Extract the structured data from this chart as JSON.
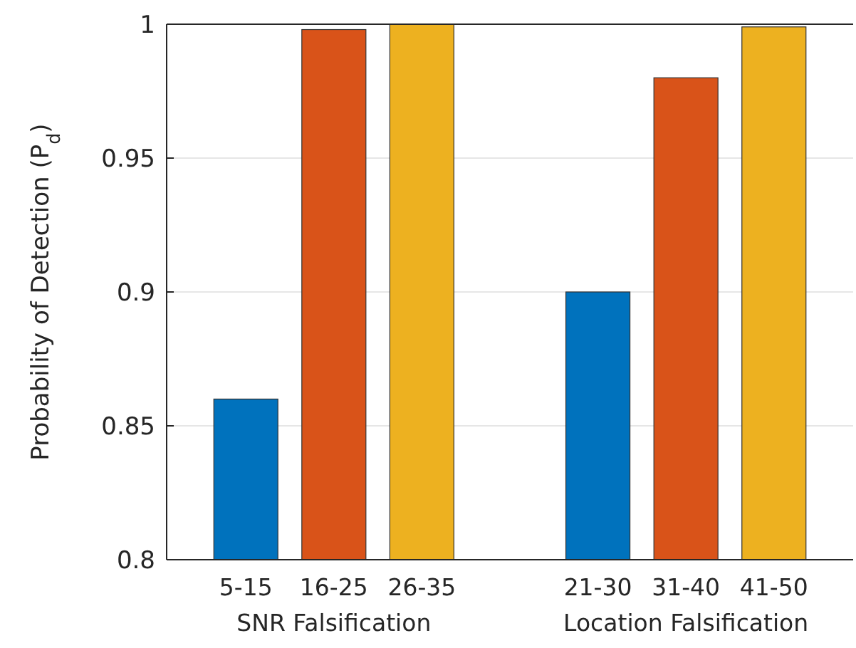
{
  "chart_data": {
    "type": "bar",
    "ylabel": "Probability of Detection (P$_{d}$)",
    "categories": [
      "5-15",
      "16-25",
      "26-35",
      null,
      "21-30",
      "31-40",
      "41-50"
    ],
    "values": [
      0.86,
      0.998,
      1.0,
      null,
      0.9,
      0.98,
      0.999
    ],
    "colors": [
      "#0072bd",
      "#d95319",
      "#edb120",
      null,
      "#0072bd",
      "#d95319",
      "#edb120"
    ],
    "ylim": [
      0.8,
      1
    ],
    "yticks": [
      0.8,
      0.85,
      0.9,
      0.95,
      1
    ],
    "grid": "y",
    "annotations": [
      "SNR Falsification",
      "Location Falsification"
    ]
  }
}
